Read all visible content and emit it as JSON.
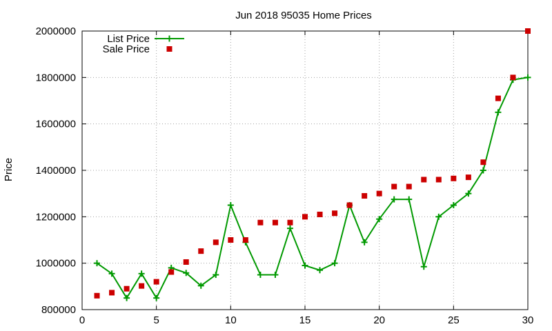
{
  "chart_data": {
    "type": "line",
    "title": "Jun 2018 95035 Home Prices",
    "xlabel": "",
    "ylabel": "Price",
    "xlim": [
      0,
      30
    ],
    "ylim": [
      800000,
      2000000
    ],
    "xticks": [
      0,
      5,
      10,
      15,
      20,
      25,
      30
    ],
    "yticks": [
      800000,
      1000000,
      1200000,
      1400000,
      1600000,
      1800000,
      2000000
    ],
    "grid": true,
    "legend_position": "top-left",
    "x": [
      1,
      2,
      3,
      4,
      5,
      6,
      7,
      8,
      9,
      10,
      11,
      12,
      13,
      14,
      15,
      16,
      17,
      18,
      19,
      20,
      21,
      22,
      23,
      24,
      25,
      26,
      27,
      28,
      29,
      30
    ],
    "series": [
      {
        "name": "List Price",
        "style": "linespoints",
        "color": "#009900",
        "values": [
          1000000,
          955000,
          850000,
          955000,
          850000,
          980000,
          958000,
          903000,
          950000,
          1250000,
          1090000,
          950000,
          950000,
          1150000,
          990000,
          970000,
          1000000,
          1250000,
          1090000,
          1190000,
          1275000,
          1275000,
          985000,
          1200000,
          1250000,
          1300000,
          1400000,
          1650000,
          1790000,
          1800000
        ]
      },
      {
        "name": "Sale Price",
        "style": "points",
        "color": "#cc0000",
        "values": [
          860000,
          873000,
          890000,
          902000,
          920000,
          962000,
          1005000,
          1052000,
          1090000,
          1100000,
          1100000,
          1175000,
          1175000,
          1175000,
          1200000,
          1210000,
          1215000,
          1250000,
          1290000,
          1300000,
          1330000,
          1330000,
          1360000,
          1360000,
          1365000,
          1370000,
          1435000,
          1710000,
          1800000,
          2000000
        ]
      }
    ]
  }
}
